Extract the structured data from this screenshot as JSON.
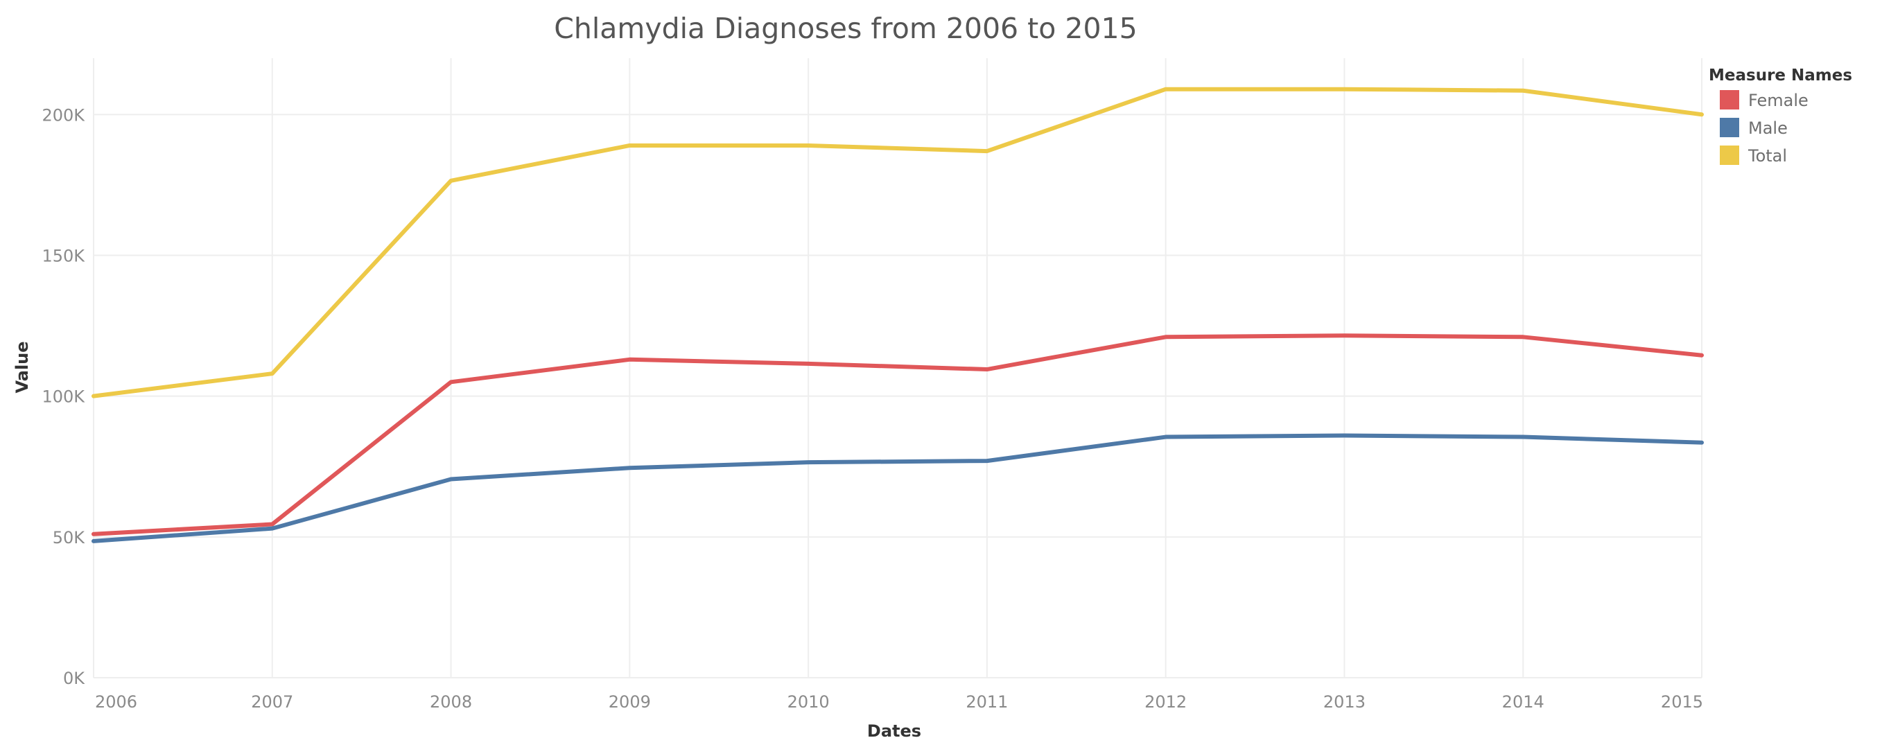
{
  "chart_data": {
    "type": "line",
    "title": "Chlamydia Diagnoses from 2006 to 2015",
    "xlabel": "Dates",
    "ylabel": "Value",
    "categories": [
      "2006",
      "2007",
      "2008",
      "2009",
      "2010",
      "2011",
      "2012",
      "2013",
      "2014",
      "2015"
    ],
    "y_ticks": [
      "0K",
      "50K",
      "100K",
      "150K",
      "200K"
    ],
    "ylim": [
      0,
      220000
    ],
    "grid": true,
    "legend": {
      "title": "Measure Names",
      "placement": "top-right"
    },
    "series": [
      {
        "name": "Female",
        "color": "#e05759",
        "values": [
          51000,
          54500,
          105000,
          113000,
          111500,
          109500,
          121000,
          121500,
          121000,
          114500
        ]
      },
      {
        "name": "Male",
        "color": "#4e79a7",
        "values": [
          48500,
          53000,
          70500,
          74500,
          76500,
          77000,
          85500,
          86000,
          85500,
          83500
        ]
      },
      {
        "name": "Total",
        "color": "#edc948",
        "values": [
          100000,
          108000,
          176500,
          189000,
          189000,
          187000,
          209000,
          209000,
          208500,
          200000
        ]
      }
    ]
  }
}
